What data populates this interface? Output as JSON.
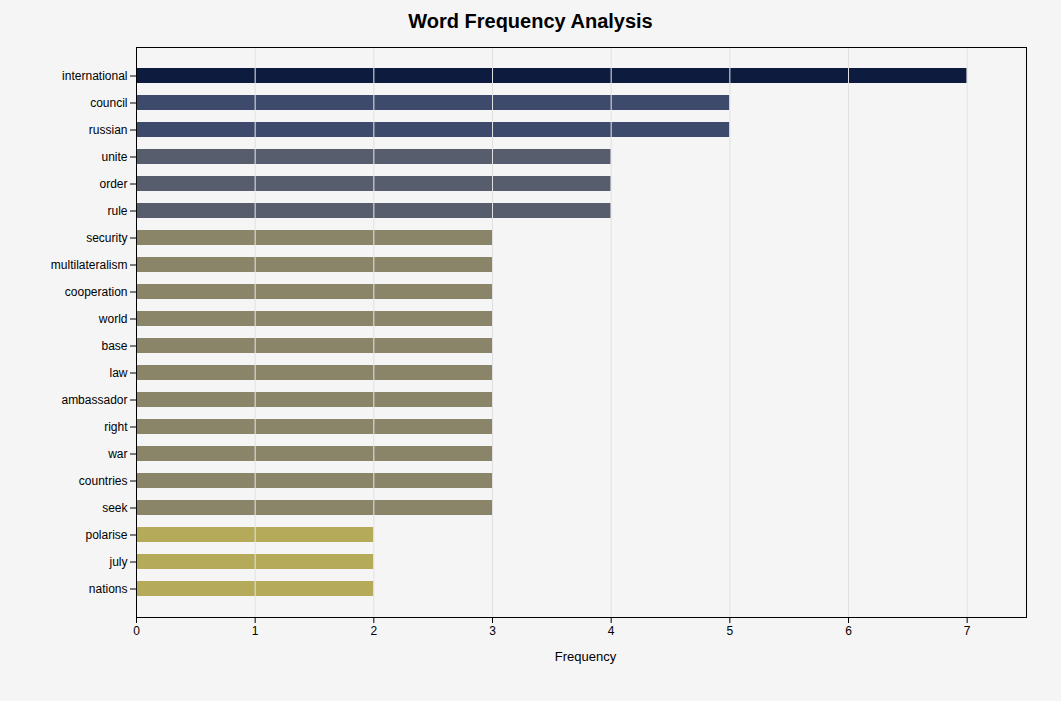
{
  "chart_data": {
    "type": "bar",
    "orientation": "horizontal",
    "title": "Word Frequency Analysis",
    "xlabel": "Frequency",
    "categories": [
      "nations",
      "july",
      "polarise",
      "seek",
      "countries",
      "war",
      "right",
      "ambassador",
      "law",
      "base",
      "world",
      "cooperation",
      "multilateralism",
      "security",
      "rule",
      "order",
      "unite",
      "russian",
      "council",
      "international"
    ],
    "values": [
      2,
      2,
      2,
      3,
      3,
      3,
      3,
      3,
      3,
      3,
      3,
      3,
      3,
      3,
      4,
      4,
      4,
      5,
      5,
      7
    ],
    "colors": [
      "#b5aa5a",
      "#b5aa5a",
      "#b5aa5a",
      "#8a8468",
      "#8a8468",
      "#8a8468",
      "#8a8468",
      "#8a8468",
      "#8a8468",
      "#8a8468",
      "#8a8468",
      "#8a8468",
      "#8a8468",
      "#8a8468",
      "#585d6e",
      "#585d6e",
      "#585d6e",
      "#3e4a6b",
      "#3e4a6b",
      "#0d1b3e"
    ],
    "xlim": [
      0,
      7.5
    ],
    "xticks": [
      0,
      1,
      2,
      3,
      4,
      5,
      6,
      7
    ],
    "grid": true
  }
}
